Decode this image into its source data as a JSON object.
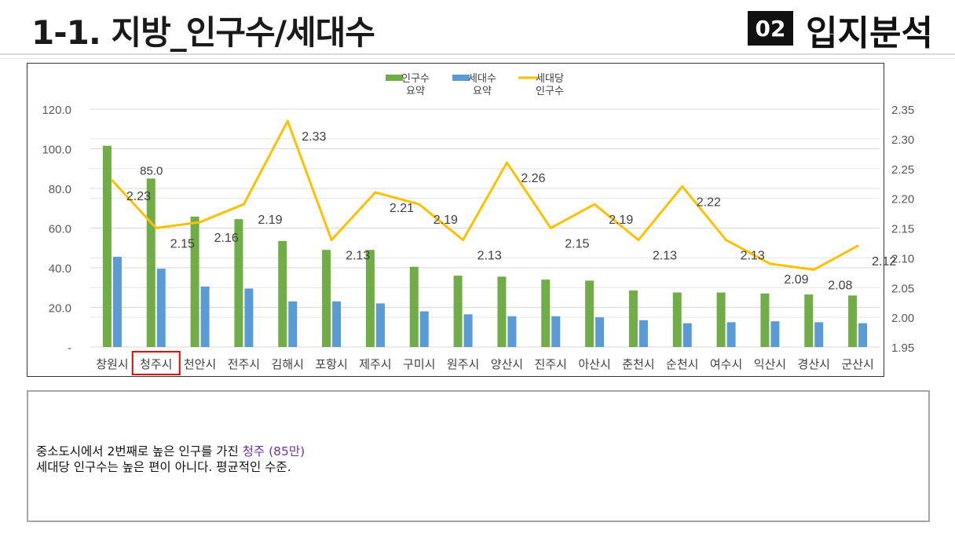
{
  "page": {
    "title": "1-1. 지방_인구수/세대수",
    "section_number": "02",
    "section_title": "입지분석"
  },
  "colors": {
    "population_bar": "#70ad47",
    "household_bar": "#5b9bd5",
    "ratio_line": "#ffc000",
    "highlight_box": "#e00000",
    "highlight_text": "#7030a0"
  },
  "chart_data": {
    "type": "bar",
    "categories": [
      "창원시",
      "청주시",
      "천안시",
      "전주시",
      "김해시",
      "포항시",
      "제주시",
      "구미시",
      "원주시",
      "양산시",
      "진주시",
      "아산시",
      "춘천시",
      "순천시",
      "여수시",
      "익산시",
      "경산시",
      "군산시"
    ],
    "series": [
      {
        "name": "인구수 요약",
        "axis": "left",
        "kind": "bar",
        "color": "#70ad47",
        "values": [
          101.5,
          85.0,
          65.8,
          64.5,
          53.5,
          49.0,
          49.0,
          40.5,
          36.0,
          35.5,
          34.0,
          33.5,
          28.5,
          27.5,
          27.5,
          27.0,
          26.5,
          26.0
        ]
      },
      {
        "name": "세대수 요약",
        "axis": "left",
        "kind": "bar",
        "color": "#5b9bd5",
        "values": [
          45.5,
          39.5,
          30.5,
          29.5,
          23.0,
          23.0,
          22.0,
          18.0,
          16.5,
          15.5,
          15.5,
          15.0,
          13.5,
          12.0,
          12.5,
          13.0,
          12.5,
          12.0
        ]
      },
      {
        "name": "세대당 인구수",
        "axis": "right",
        "kind": "line",
        "color": "#ffc000",
        "values": [
          2.23,
          2.15,
          2.16,
          2.19,
          2.33,
          2.13,
          2.21,
          2.19,
          2.13,
          2.26,
          2.15,
          2.19,
          2.13,
          2.22,
          2.13,
          2.09,
          2.08,
          2.12
        ]
      }
    ],
    "bar_value_labels": [
      {
        "index": 1,
        "series": 0,
        "text": "85.0"
      }
    ],
    "line_value_labels": [
      "2.23",
      "2.15",
      "2.16",
      "2.19",
      "2.33",
      "2.13",
      "2.21",
      "2.19",
      "2.13",
      "2.26",
      "2.15",
      "2.19",
      "2.13",
      "2.22",
      "2.13",
      "2.09",
      "2.08",
      "2.12"
    ],
    "legend_lines": [
      [
        "인구수",
        "요약"
      ],
      [
        "세대수",
        "요약"
      ],
      [
        "세대당",
        "인구수"
      ]
    ],
    "legend_position": "top-center",
    "y_left": {
      "ylim": [
        0,
        120
      ],
      "ticks": [
        "-",
        "20.0",
        "40.0",
        "60.0",
        "80.0",
        "100.0",
        "120.0"
      ]
    },
    "y_right": {
      "ylim": [
        1.95,
        2.35
      ],
      "ticks": [
        "1.95",
        "2.00",
        "2.05",
        "2.10",
        "2.15",
        "2.20",
        "2.25",
        "2.30",
        "2.35"
      ]
    },
    "highlight_category": "청주시",
    "grid": true
  },
  "note": {
    "line1_prefix": "중소도시에서 2번째로 높은 인구를 가진 ",
    "line1_highlight": "청주 (85만)",
    "line2": "세대당 인구수는 높은 편이 아니다. 평균적인 수준."
  }
}
